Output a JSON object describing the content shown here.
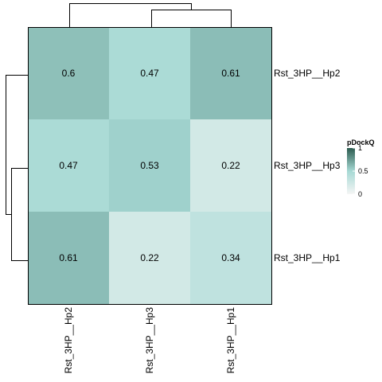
{
  "chart_data": {
    "type": "heatmap",
    "rows": [
      "Rst_3HP__Hp2",
      "Rst_3HP__Hp3",
      "Rst_3HP__Hp1"
    ],
    "columns": [
      "Rst_3HP__Hp2",
      "Rst_3HP__Hp3",
      "Rst_3HP__Hp1"
    ],
    "values": [
      [
        0.6,
        0.47,
        0.61
      ],
      [
        0.47,
        0.53,
        0.22
      ],
      [
        0.61,
        0.22,
        0.34
      ]
    ],
    "cell_labels": [
      [
        "0.6",
        "0.47",
        "0.61"
      ],
      [
        "0.47",
        "0.53",
        "0.22"
      ],
      [
        "0.61",
        "0.22",
        "0.34"
      ]
    ],
    "legend": {
      "title": "pDockQ",
      "range": [
        0,
        1
      ],
      "ticks": [
        {
          "value": 0,
          "label": "0"
        },
        {
          "value": 0.5,
          "label": "0.5"
        },
        {
          "value": 1,
          "label": "1"
        }
      ],
      "placement": "right"
    },
    "color_scale": {
      "low": "#f5f5f5",
      "mid": "#a6d9d4",
      "high": "#2c5b4f"
    },
    "dendrograms": {
      "rows": true,
      "columns": true
    }
  }
}
